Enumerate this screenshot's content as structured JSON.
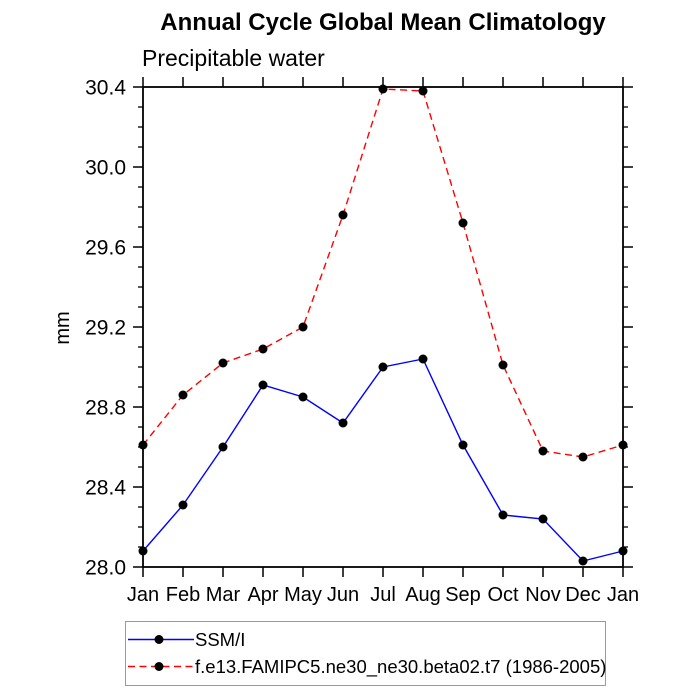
{
  "chart_data": {
    "type": "line",
    "title": "Annual Cycle Global Mean Climatology",
    "subtitle": "Precipitable water",
    "ylabel": "mm",
    "xlabel": "",
    "categories": [
      "Jan",
      "Feb",
      "Mar",
      "Apr",
      "May",
      "Jun",
      "Jul",
      "Aug",
      "Sep",
      "Oct",
      "Nov",
      "Dec",
      "Jan"
    ],
    "ylim": [
      28.0,
      30.4
    ],
    "ytick_labels": [
      "28.0",
      "28.4",
      "28.8",
      "29.2",
      "29.6",
      "30.0",
      "30.4"
    ],
    "ytick_major_step": 0.4,
    "ytick_minor_step": 0.1,
    "grid": false,
    "legend_position": "bottom",
    "series": [
      {
        "name": "SSM/I",
        "color": "#0000ff",
        "line_style": "solid",
        "marker": "filled-circle",
        "marker_color": "#000000",
        "values": [
          28.08,
          28.31,
          28.6,
          28.91,
          28.85,
          28.72,
          29.0,
          29.04,
          28.61,
          28.26,
          28.24,
          28.03,
          28.08
        ]
      },
      {
        "name": "f.e13.FAMIPC5.ne30_ne30.beta02.t7 (1986-2005)",
        "color": "#ff0000",
        "line_style": "dashed",
        "marker": "filled-circle",
        "marker_color": "#000000",
        "values": [
          28.61,
          28.86,
          29.02,
          29.09,
          29.2,
          29.76,
          30.39,
          30.38,
          29.72,
          29.01,
          28.58,
          28.55,
          28.61
        ]
      }
    ]
  },
  "legend": {
    "items": [
      {
        "label": "SSM/I",
        "color": "#0000ff",
        "style": "solid"
      },
      {
        "label": "f.e13.FAMIPC5.ne30_ne30.beta02.t7 (1986-2005)",
        "color": "#ff0000",
        "style": "dashed"
      }
    ]
  },
  "colors": {
    "axis": "#000000",
    "text": "#000000",
    "series_observation": "#0000ff",
    "series_model": "#ff0000",
    "marker": "#000000",
    "legend_border": "#9a9a9a",
    "background": "#ffffff"
  }
}
